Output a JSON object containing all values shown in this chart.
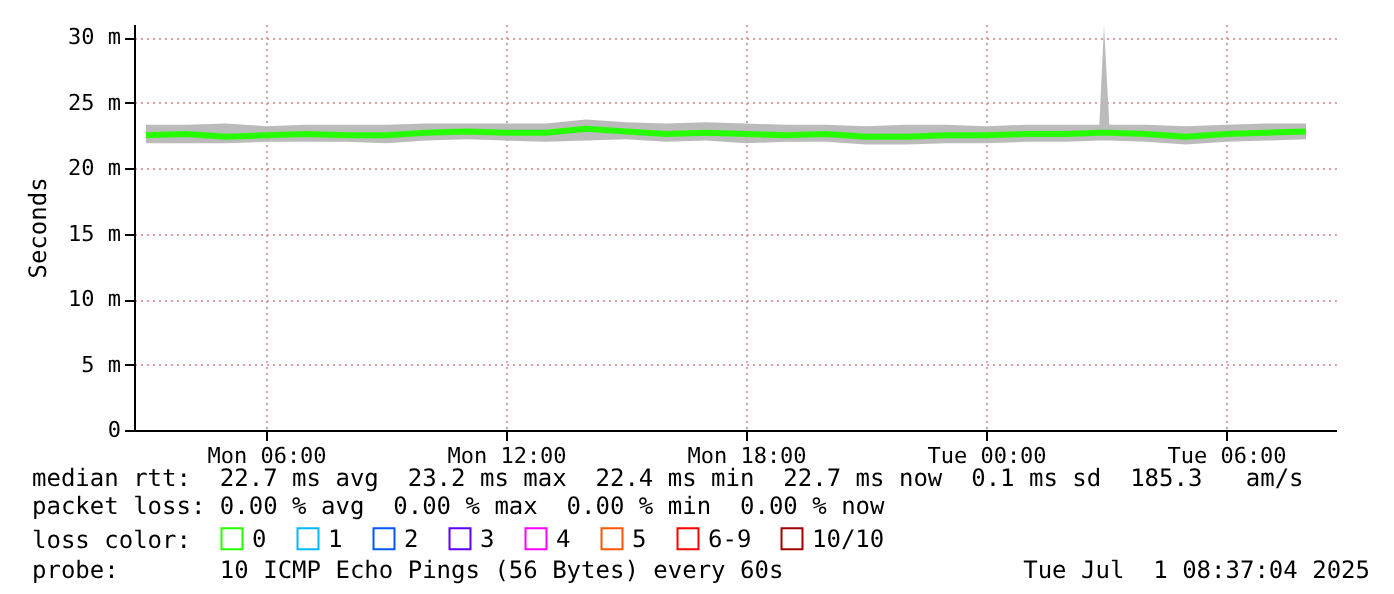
{
  "chart_data": {
    "type": "line",
    "ylabel": "Seconds",
    "legend_title": "loss color:",
    "legend": "bottom left",
    "grid": true,
    "x": [
      "2025-06-30T03:00",
      "2025-06-30T04:00",
      "2025-06-30T05:00",
      "2025-06-30T06:00",
      "2025-06-30T07:00",
      "2025-06-30T08:00",
      "2025-06-30T09:00",
      "2025-06-30T10:00",
      "2025-06-30T11:00",
      "2025-06-30T12:00",
      "2025-06-30T13:00",
      "2025-06-30T14:00",
      "2025-06-30T15:00",
      "2025-06-30T16:00",
      "2025-06-30T17:00",
      "2025-06-30T18:00",
      "2025-06-30T19:00",
      "2025-06-30T20:00",
      "2025-06-30T21:00",
      "2025-06-30T22:00",
      "2025-06-30T23:00",
      "2025-07-01T00:00",
      "2025-07-01T01:00",
      "2025-07-01T02:00",
      "2025-07-01T02:50",
      "2025-07-01T02:57",
      "2025-07-01T03:05",
      "2025-07-01T04:00",
      "2025-07-01T05:00",
      "2025-07-01T06:00",
      "2025-07-01T07:00",
      "2025-07-01T08:00"
    ],
    "series": [
      {
        "name": "0",
        "color": "#26ff00",
        "values": [
          22.5,
          22.6,
          22.4,
          22.5,
          22.6,
          22.5,
          22.5,
          22.7,
          22.8,
          22.7,
          22.7,
          23.0,
          22.8,
          22.6,
          22.7,
          22.6,
          22.5,
          22.6,
          22.4,
          22.4,
          22.5,
          22.5,
          22.6,
          22.6,
          22.7,
          22.7,
          22.7,
          22.6,
          22.4,
          22.6,
          22.7,
          22.8
        ],
        "lower": [
          21.9,
          21.9,
          21.9,
          22.0,
          22.0,
          22.0,
          21.9,
          22.1,
          22.2,
          22.1,
          22.0,
          22.1,
          22.2,
          22.0,
          22.1,
          21.9,
          22.0,
          22.0,
          21.8,
          21.8,
          21.9,
          21.9,
          22.0,
          22.0,
          22.1,
          22.1,
          22.1,
          22.0,
          21.8,
          22.0,
          22.1,
          22.2
        ],
        "upper": [
          23.3,
          23.3,
          23.4,
          23.2,
          23.3,
          23.3,
          23.3,
          23.4,
          23.4,
          23.4,
          23.4,
          23.7,
          23.5,
          23.4,
          23.5,
          23.4,
          23.3,
          23.3,
          23.2,
          23.3,
          23.3,
          23.2,
          23.3,
          23.3,
          23.3,
          30.9,
          23.3,
          23.3,
          23.2,
          23.3,
          23.4,
          23.4
        ]
      },
      {
        "name": "1",
        "color": "#00b8ff",
        "values": [
          null,
          null,
          null,
          null,
          null,
          null,
          null,
          null,
          null,
          null,
          null,
          null,
          null,
          null,
          null,
          null,
          null,
          null,
          null,
          null,
          null,
          null,
          null,
          null,
          null,
          null,
          null,
          null,
          null,
          null,
          null,
          null
        ]
      },
      {
        "name": "2",
        "color": "#0059ff",
        "values": [
          null,
          null,
          null,
          null,
          null,
          null,
          null,
          null,
          null,
          null,
          null,
          null,
          null,
          null,
          null,
          null,
          null,
          null,
          null,
          null,
          null,
          null,
          null,
          null,
          null,
          null,
          null,
          null,
          null,
          null,
          null,
          null
        ]
      },
      {
        "name": "3",
        "color": "#5e00ff",
        "values": [
          null,
          null,
          null,
          null,
          null,
          null,
          null,
          null,
          null,
          null,
          null,
          null,
          null,
          null,
          null,
          null,
          null,
          null,
          null,
          null,
          null,
          null,
          null,
          null,
          null,
          null,
          null,
          null,
          null,
          null,
          null,
          null
        ]
      },
      {
        "name": "4",
        "color": "#ff00ff",
        "values": [
          null,
          null,
          null,
          null,
          null,
          null,
          null,
          null,
          null,
          null,
          null,
          null,
          null,
          null,
          null,
          null,
          null,
          null,
          null,
          null,
          null,
          null,
          null,
          null,
          null,
          null,
          null,
          null,
          null,
          null,
          null,
          null
        ]
      },
      {
        "name": "5",
        "color": "#ff5500",
        "values": [
          null,
          null,
          null,
          null,
          null,
          null,
          null,
          null,
          null,
          null,
          null,
          null,
          null,
          null,
          null,
          null,
          null,
          null,
          null,
          null,
          null,
          null,
          null,
          null,
          null,
          null,
          null,
          null,
          null,
          null,
          null,
          null
        ]
      },
      {
        "name": "6-9",
        "color": "#ff0000",
        "values": [
          null,
          null,
          null,
          null,
          null,
          null,
          null,
          null,
          null,
          null,
          null,
          null,
          null,
          null,
          null,
          null,
          null,
          null,
          null,
          null,
          null,
          null,
          null,
          null,
          null,
          null,
          null,
          null,
          null,
          null,
          null,
          null
        ]
      },
      {
        "name": "10/10",
        "color": "#a10000",
        "values": [
          null,
          null,
          null,
          null,
          null,
          null,
          null,
          null,
          null,
          null,
          null,
          null,
          null,
          null,
          null,
          null,
          null,
          null,
          null,
          null,
          null,
          null,
          null,
          null,
          null,
          null,
          null,
          null,
          null,
          null,
          null,
          null
        ]
      }
    ],
    "xlim": [
      "2025-06-30T02:42",
      "2025-07-01T08:45"
    ],
    "xticks": [
      {
        "value": "2025-06-30T06:00",
        "label": "Mon 06:00"
      },
      {
        "value": "2025-06-30T12:00",
        "label": "Mon 12:00"
      },
      {
        "value": "2025-06-30T18:00",
        "label": "Mon 18:00"
      },
      {
        "value": "2025-07-01T00:00",
        "label": "Tue 00:00"
      },
      {
        "value": "2025-07-01T06:00",
        "label": "Tue 06:00"
      }
    ],
    "ylim": [
      0,
      31
    ],
    "yticks": [
      0,
      {
        "value": 5,
        "label": "5 m"
      },
      {
        "value": 10,
        "label": "10 m"
      },
      {
        "value": 15,
        "label": "15 m"
      },
      {
        "value": 20,
        "label": "20 m"
      },
      {
        "value": 25,
        "label": "25 m"
      },
      {
        "value": 30,
        "label": "30 m"
      }
    ],
    "annotations": [
      "median rtt:  22.7 ms avg  23.2 ms max  22.4 ms min  22.7 ms now  0.1 ms sd  185.3   am/s",
      "packet loss: 0.00 % avg  0.00 % max  0.00 % min  0.00 % now",
      "probe:       10 ICMP Echo Pings (56 Bytes) every 60s",
      "Tue Jul  1 08:37:04 2025"
    ]
  }
}
